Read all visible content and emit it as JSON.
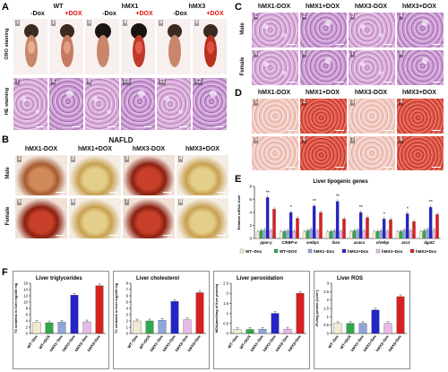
{
  "panel_labels": {
    "a": "A",
    "b": "B",
    "c": "C",
    "d": "D",
    "e": "E",
    "f": "F"
  },
  "panel_a": {
    "groups": [
      "WT",
      "hMX1",
      "hMX3"
    ],
    "conditions": [
      "-Dox",
      "+DOX",
      "-Dox",
      "+DOX",
      "-Dox",
      "+DOX"
    ],
    "row_labels": [
      "ORO staining",
      "HE staining"
    ],
    "numbers": [
      "1",
      "2",
      "3",
      "4",
      "5",
      "6",
      "7",
      "8",
      "9",
      "10",
      "11",
      "12"
    ]
  },
  "panel_b": {
    "title": "NAFLD",
    "columns": [
      "hMX1-DOX",
      "hMX1+DOX",
      "hMX3-DOX",
      "hMX3+DOX"
    ],
    "rows": [
      "Male",
      "Female"
    ],
    "numbers": [
      "1",
      "2",
      "3",
      "4",
      "5",
      "6",
      "7",
      "8"
    ]
  },
  "panel_c": {
    "columns": [
      "hMX1-DOX",
      "hMX1+DOX",
      "hMX3-DOX",
      "hMX3+DOX"
    ],
    "rows": [
      "Male",
      "Female"
    ],
    "numbers": [
      "1",
      "2",
      "3",
      "4",
      "5",
      "6",
      "7",
      "8"
    ]
  },
  "panel_d": {
    "columns": [
      "hMX1-DOX",
      "hMX1+DOX",
      "hMX3-DOX",
      "hMX3+DOX"
    ],
    "numbers": [
      "1",
      "2",
      "3",
      "4",
      "5",
      "6",
      "7",
      "8"
    ]
  },
  "colors": {
    "wt_minus": "#f2ead0",
    "wt_plus": "#2fa84a",
    "hmx1_minus": "#8ea6d8",
    "hmx1_plus": "#2424c8",
    "hmx3_minus": "#e8b8e8",
    "hmx3_plus": "#d82020"
  },
  "chart_data": [
    {
      "type": "bar",
      "title": "Liver lipogenic genes",
      "ylabel": "Relative mRNA level",
      "ylim": [
        0,
        8
      ],
      "yticks": [
        0,
        2,
        4,
        6,
        8
      ],
      "categories": [
        "ppar-γ",
        "C/EBP-α",
        "srebp1",
        "fasn",
        "acaca",
        "chrebp",
        "acc1",
        "dgat2"
      ],
      "series": [
        {
          "name": "WT−Dox",
          "values": [
            1,
            1,
            1,
            1,
            1,
            1,
            1,
            1
          ]
        },
        {
          "name": "WT+DOX",
          "values": [
            1.2,
            1.1,
            1.2,
            1.1,
            1.2,
            1.1,
            1.1,
            1.2
          ]
        },
        {
          "name": "hMX1−Dox",
          "values": [
            1.3,
            1.2,
            1.4,
            1.2,
            1.3,
            1.2,
            1.3,
            1.4
          ]
        },
        {
          "name": "hMX2+Dox",
          "values": [
            6.3,
            4.0,
            5.0,
            5.7,
            4.0,
            3.0,
            3.8,
            4.8
          ]
        },
        {
          "name": "hMX3−Dox",
          "values": [
            1.2,
            1.1,
            1.2,
            1.1,
            1.2,
            1.1,
            1.2,
            1.3
          ]
        },
        {
          "name": "hMX3+Dox",
          "values": [
            4.5,
            3.1,
            4.0,
            3.0,
            3.2,
            2.9,
            2.6,
            3.7
          ]
        }
      ],
      "annotations": [
        "**",
        "*",
        "**",
        "**",
        "**",
        "*",
        "*",
        "**"
      ]
    },
    {
      "type": "bar",
      "title": "Liver triglycerides",
      "ylabel": "TG contents in liver mg/100 mg",
      "ylim": [
        0,
        16
      ],
      "yticks": [
        0,
        2,
        4,
        6,
        8,
        10,
        12,
        14,
        16
      ],
      "categories": [
        "WT−Dox",
        "WT+DOX",
        "hMX1−Dox",
        "hMX1+Dox",
        "hMX3−Dox",
        "hMX3+Dox"
      ],
      "values": [
        3.5,
        3.4,
        3.6,
        12.2,
        3.7,
        15.2
      ]
    },
    {
      "type": "bar",
      "title": "Liver cholesterol",
      "ylabel": "TC contents in liver mg/100 mg",
      "ylim": [
        0,
        8
      ],
      "yticks": [
        0,
        1,
        2,
        3,
        4,
        5,
        6,
        7,
        8
      ],
      "categories": [
        "WT−Dox",
        "WT+DOX",
        "hMX1−Dox",
        "hMX1+Dox",
        "hMX3−Dox",
        "hMX3+Dox"
      ],
      "values": [
        2.0,
        2.0,
        2.1,
        5.1,
        2.2,
        6.5
      ]
    },
    {
      "type": "bar",
      "title": "Liver peroxidation",
      "ylabel": "MDA(nmol/mg of liver protein)",
      "ylim": [
        0,
        2.5
      ],
      "yticks": [
        0,
        0.5,
        1.0,
        1.5,
        2.0,
        2.5
      ],
      "categories": [
        "WT−Dox",
        "WT+DOX",
        "hMX1−Dox",
        "hMX1+Dox",
        "hMX3−Dox",
        "hMX3+Dox"
      ],
      "values": [
        0.2,
        0.2,
        0.21,
        1.0,
        0.22,
        2.0
      ]
    },
    {
      "type": "bar",
      "title": "Liver ROS",
      "ylabel": "IFU/mg protein (1x10⁴)",
      "ylim": [
        0,
        3
      ],
      "yticks": [
        0,
        0.5,
        1.0,
        1.5,
        2.0,
        2.5,
        3.0
      ],
      "categories": [
        "WT−Dox",
        "WT+DOX",
        "hMX1−Dox",
        "hMX1+Dox",
        "hMX3−Dox",
        "hMX3+Dox"
      ],
      "values": [
        0.6,
        0.6,
        0.6,
        1.4,
        0.6,
        2.2
      ]
    }
  ]
}
